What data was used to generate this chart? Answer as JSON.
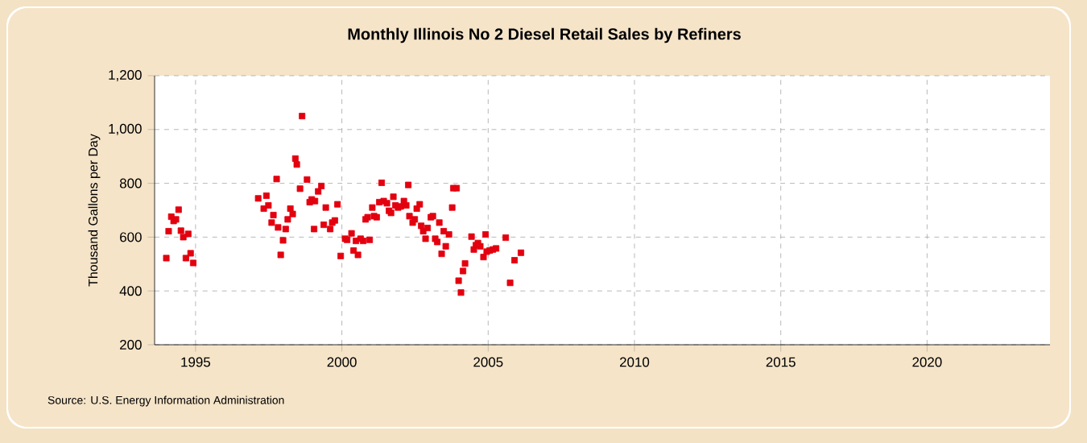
{
  "chart_data": {
    "type": "scatter",
    "title": "Monthly Illinois No 2 Diesel Retail Sales by Refiners",
    "ylabel": "Thousand Gallons per Day",
    "annotations": [
      "Source: U.S. Energy Information Administration"
    ],
    "xlim": [
      1993.6,
      2024.2
    ],
    "xticks": [
      1995,
      2000,
      2005,
      2010,
      2015,
      2020
    ],
    "ylim": [
      200,
      1200
    ],
    "yticks": [
      200,
      400,
      600,
      800,
      {
        "value": 1000,
        "label": "1,000"
      },
      {
        "value": 1200,
        "label": "1,200"
      }
    ],
    "grid": true,
    "marker": "square",
    "series": [
      {
        "color": "#e3000f",
        "x": [
          1994.0,
          1994.08,
          1994.17,
          1994.25,
          1994.33,
          1994.42,
          1994.5,
          1994.58,
          1994.67,
          1994.75,
          1994.83,
          1994.92,
          1997.14,
          1997.33,
          1997.42,
          1997.49,
          1997.6,
          1997.66,
          1997.77,
          1997.82,
          1997.91,
          1997.99,
          1998.08,
          1998.15,
          1998.24,
          1998.32,
          1998.41,
          1998.46,
          1998.57,
          1998.64,
          1998.81,
          1998.9,
          1998.97,
          1999.05,
          1999.08,
          1999.19,
          1999.3,
          1999.38,
          1999.45,
          1999.6,
          1999.67,
          1999.76,
          1999.85,
          1999.96,
          2000.11,
          2000.18,
          2000.33,
          2000.4,
          2000.48,
          2000.55,
          2000.64,
          2000.73,
          2000.81,
          2000.88,
          2000.95,
          2001.04,
          2001.1,
          2001.19,
          2001.28,
          2001.36,
          2001.43,
          2001.54,
          2001.61,
          2001.68,
          2001.76,
          2001.83,
          2001.92,
          2002.01,
          2002.12,
          2002.2,
          2002.27,
          2002.31,
          2002.42,
          2002.49,
          2002.56,
          2002.66,
          2002.71,
          2002.78,
          2002.86,
          2002.93,
          2003.04,
          2003.11,
          2003.19,
          2003.26,
          2003.33,
          2003.41,
          2003.48,
          2003.55,
          2003.66,
          2003.77,
          2003.81,
          2003.92,
          2003.99,
          2004.07,
          2004.14,
          2004.21,
          2004.43,
          2004.51,
          2004.58,
          2004.65,
          2004.73,
          2004.84,
          2004.91,
          2004.95,
          2005.05,
          2005.16,
          2005.27,
          2005.6,
          2005.75,
          2005.9,
          2006.12
        ],
        "values": [
          522,
          622,
          676,
          660,
          666,
          702,
          624,
          600,
          522,
          612,
          540,
          504,
          744,
          706,
          754,
          718,
          654,
          682,
          816,
          636,
          534,
          588,
          630,
          666,
          706,
          686,
          892,
          870,
          780,
          1050,
          814,
          730,
          740,
          630,
          734,
          770,
          790,
          646,
          710,
          630,
          654,
          662,
          722,
          530,
          594,
          590,
          614,
          550,
          586,
          534,
          594,
          586,
          666,
          674,
          590,
          710,
          678,
          674,
          730,
          802,
          734,
          726,
          698,
          690,
          750,
          718,
          710,
          714,
          734,
          718,
          794,
          678,
          654,
          666,
          706,
          722,
          642,
          622,
          594,
          634,
          674,
          678,
          594,
          582,
          654,
          538,
          622,
          566,
          610,
          710,
          782,
          782,
          438,
          394,
          474,
          502,
          602,
          554,
          570,
          578,
          566,
          526,
          610,
          546,
          550,
          554,
          558,
          598,
          430,
          514,
          542
        ]
      }
    ]
  }
}
